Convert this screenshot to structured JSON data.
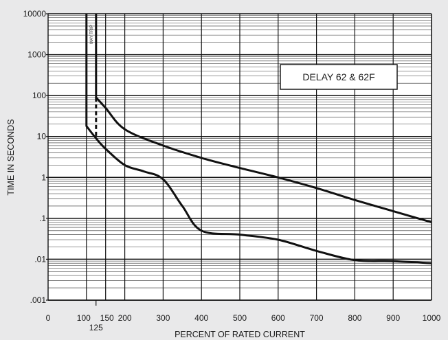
{
  "chart_data": {
    "type": "line",
    "title": "",
    "xlabel": "PERCENT OF RATED CURRENT",
    "ylabel": "TIME IN SECONDS",
    "xlim": [
      0,
      1000
    ],
    "ylim": [
      0.001,
      10000
    ],
    "yscale": "log",
    "grid": true,
    "x_ticks": [
      {
        "value": 0,
        "label": "0"
      },
      {
        "value": 100,
        "label": "100"
      },
      {
        "value": 150,
        "label": "150"
      },
      {
        "value": 200,
        "label": "200"
      },
      {
        "value": 300,
        "label": "300"
      },
      {
        "value": 400,
        "label": "400"
      },
      {
        "value": 500,
        "label": "500"
      },
      {
        "value": 600,
        "label": "600"
      },
      {
        "value": 700,
        "label": "700"
      },
      {
        "value": 800,
        "label": "800"
      },
      {
        "value": 900,
        "label": "900"
      },
      {
        "value": 1000,
        "label": "1000"
      }
    ],
    "x_extra_tick": {
      "value": 125,
      "label": "125"
    },
    "y_ticks": [
      {
        "value": 10000,
        "label": "10000"
      },
      {
        "value": 1000,
        "label": "1000"
      },
      {
        "value": 100,
        "label": "100"
      },
      {
        "value": 10,
        "label": "10"
      },
      {
        "value": 1,
        "label": "1"
      },
      {
        "value": 0.1,
        "label": ".1"
      },
      {
        "value": 0.01,
        "label": ".01"
      },
      {
        "value": 0.001,
        "label": ".001"
      }
    ],
    "legend_box": {
      "text": "DELAY 62 & 62F",
      "position": "top-right"
    },
    "annotation": {
      "text": "MAY TRIP",
      "x_from": 100,
      "x_to": 125
    },
    "series": [
      {
        "role": "upper",
        "points": [
          [
            125,
            10000
          ],
          [
            125,
            90
          ],
          [
            150,
            50
          ],
          [
            200,
            15
          ],
          [
            300,
            6
          ],
          [
            400,
            3
          ],
          [
            500,
            1.7
          ],
          [
            600,
            1.0
          ],
          [
            700,
            0.55
          ],
          [
            800,
            0.28
          ],
          [
            900,
            0.15
          ],
          [
            1000,
            0.08
          ]
        ]
      },
      {
        "role": "lower",
        "points": [
          [
            100,
            10000
          ],
          [
            100,
            18
          ],
          [
            125,
            9
          ],
          [
            150,
            5
          ],
          [
            200,
            2
          ],
          [
            250,
            1.4
          ],
          [
            300,
            0.9
          ],
          [
            350,
            0.2
          ],
          [
            400,
            0.05
          ],
          [
            500,
            0.04
          ],
          [
            600,
            0.03
          ],
          [
            700,
            0.016
          ],
          [
            800,
            0.0095
          ],
          [
            900,
            0.009
          ],
          [
            1000,
            0.008
          ]
        ]
      },
      {
        "role": "dashed-connector",
        "style": "dashed",
        "points": [
          [
            125,
            90
          ],
          [
            125,
            9
          ]
        ]
      }
    ]
  }
}
